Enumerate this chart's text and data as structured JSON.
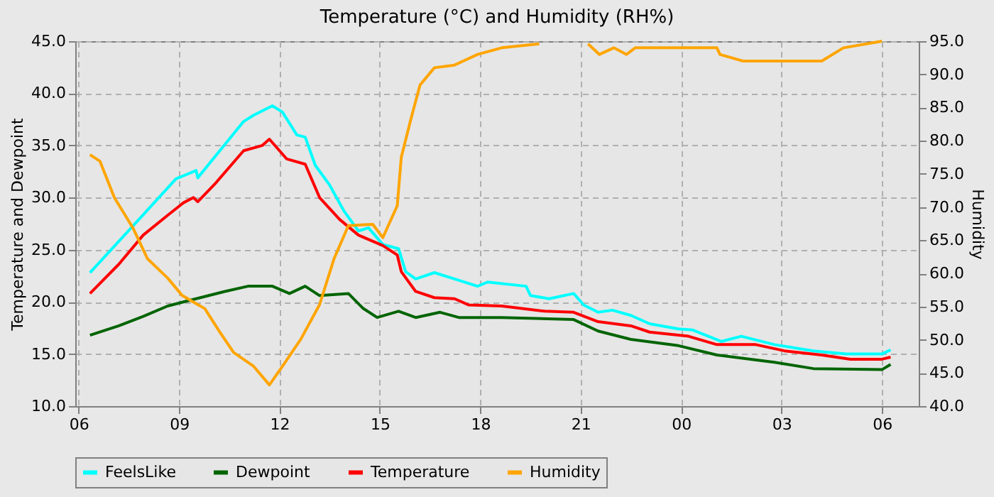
{
  "chart_data": {
    "type": "line",
    "title": "Temperature (°C) and Humidity (RH%)",
    "ylabel": "Temperature and Dewpoint",
    "y2label": "Humidity",
    "xlim": [
      5.9,
      31.1
    ],
    "xticks": [
      {
        "value": 6,
        "label": "06"
      },
      {
        "value": 9,
        "label": "09"
      },
      {
        "value": 12,
        "label": "12"
      },
      {
        "value": 15,
        "label": "15"
      },
      {
        "value": 18,
        "label": "18"
      },
      {
        "value": 21,
        "label": "21"
      },
      {
        "value": 24,
        "label": "00"
      },
      {
        "value": 27,
        "label": "03"
      },
      {
        "value": 30,
        "label": "06"
      }
    ],
    "ylim": [
      10,
      45
    ],
    "yticks": [
      {
        "value": 10,
        "label": "10.0"
      },
      {
        "value": 15,
        "label": "15.0"
      },
      {
        "value": 20,
        "label": "20.0"
      },
      {
        "value": 25,
        "label": "25.0"
      },
      {
        "value": 30,
        "label": "30.0"
      },
      {
        "value": 35,
        "label": "35.0"
      },
      {
        "value": 40,
        "label": "40.0"
      },
      {
        "value": 45,
        "label": "45.0"
      }
    ],
    "y2lim": [
      40,
      95
    ],
    "y2ticks": [
      {
        "value": 40,
        "label": "40.0"
      },
      {
        "value": 45,
        "label": "45.0"
      },
      {
        "value": 50,
        "label": "50.0"
      },
      {
        "value": 55,
        "label": "55.0"
      },
      {
        "value": 60,
        "label": "60.0"
      },
      {
        "value": 65,
        "label": "65.0"
      },
      {
        "value": 70,
        "label": "70.0"
      },
      {
        "value": 75,
        "label": "75.0"
      },
      {
        "value": 80,
        "label": "80.0"
      },
      {
        "value": 85,
        "label": "85.0"
      },
      {
        "value": 90,
        "label": "90.0"
      },
      {
        "value": 95,
        "label": "95.0"
      }
    ],
    "grid": true,
    "legend": "bottom",
    "series": [
      {
        "name": "FeelsLike",
        "color": "#00ffff",
        "x": [
          6.34,
          7.8,
          8.91,
          9.51,
          9.56,
          10.37,
          10.93,
          11.23,
          11.79,
          12.09,
          12.52,
          12.77,
          13.07,
          13.5,
          13.93,
          14.36,
          14.66,
          15.09,
          15.56,
          15.77,
          16.07,
          16.63,
          17.23,
          17.92,
          18.22,
          19.37,
          19.5,
          20.06,
          20.79,
          21.09,
          21.52,
          21.95,
          22.5,
          23.06,
          23.92,
          24.35,
          25.2,
          25.8,
          26.79,
          27.95,
          28.93,
          30.0,
          30.26
        ],
        "values": [
          22.8,
          27.9,
          31.8,
          32.6,
          31.9,
          35.1,
          37.3,
          37.9,
          38.8,
          38.2,
          36.0,
          35.8,
          33.1,
          31.2,
          28.7,
          26.8,
          27.1,
          25.5,
          25.1,
          22.9,
          22.2,
          22.8,
          22.2,
          21.5,
          21.9,
          21.5,
          20.6,
          20.3,
          20.8,
          19.7,
          19.0,
          19.2,
          18.7,
          17.9,
          17.4,
          17.3,
          16.2,
          16.7,
          15.9,
          15.3,
          15.0,
          15.0,
          15.4
        ]
      },
      {
        "name": "Dewpoint",
        "color": "#006400",
        "x": [
          6.34,
          7.2,
          7.93,
          8.66,
          9.51,
          10.37,
          11.06,
          11.79,
          12.3,
          12.77,
          13.2,
          14.06,
          14.49,
          14.92,
          15.56,
          16.07,
          16.8,
          17.36,
          18.64,
          20.79,
          21.52,
          22.5,
          23.92,
          25.07,
          26.79,
          27.95,
          30.0,
          30.26
        ],
        "values": [
          16.8,
          17.7,
          18.6,
          19.6,
          20.3,
          21.0,
          21.5,
          21.5,
          20.8,
          21.5,
          20.6,
          20.8,
          19.4,
          18.5,
          19.1,
          18.5,
          19.0,
          18.5,
          18.5,
          18.3,
          17.2,
          16.4,
          15.8,
          14.9,
          14.2,
          13.6,
          13.5,
          14.0
        ]
      },
      {
        "name": "Temperature",
        "color": "#ff0000",
        "x": [
          6.34,
          7.2,
          7.93,
          8.66,
          9.13,
          9.43,
          9.56,
          10.07,
          10.93,
          11.49,
          11.7,
          12.22,
          12.77,
          13.2,
          13.8,
          14.36,
          15.09,
          15.52,
          15.64,
          16.07,
          16.63,
          17.23,
          17.66,
          18.64,
          19.93,
          20.79,
          21.52,
          22.5,
          23.06,
          24.22,
          25.07,
          26.23,
          27.09,
          28.2,
          29.06,
          30.0,
          30.26
        ],
        "values": [
          20.8,
          23.6,
          26.4,
          28.3,
          29.5,
          30.0,
          29.6,
          31.3,
          34.5,
          35.0,
          35.6,
          33.7,
          33.2,
          30.0,
          27.9,
          26.4,
          25.4,
          24.5,
          22.9,
          21.0,
          20.4,
          20.3,
          19.7,
          19.6,
          19.1,
          19.0,
          18.1,
          17.7,
          17.1,
          16.7,
          15.9,
          15.9,
          15.3,
          14.9,
          14.5,
          14.5,
          14.7
        ]
      },
      {
        "name": "Humidity",
        "color": "#ffa500",
        "axis": "y2",
        "x": [
          6.34,
          6.64,
          7.07,
          7.63,
          8.06,
          8.66,
          9.09,
          9.56,
          9.77,
          10.2,
          10.63,
          11.23,
          11.7,
          12.09,
          12.64,
          13.2,
          13.63,
          14.06,
          14.79,
          15.09,
          15.52,
          15.64,
          15.94,
          16.2,
          16.63,
          17.23,
          17.49,
          17.92,
          18.64,
          19.76,
          20.5,
          21.22,
          21.56,
          21.99,
          22.37,
          22.63,
          25.07,
          25.16,
          25.85,
          28.2,
          28.85,
          30.0
        ],
        "values": [
          77.9,
          76.9,
          71.4,
          66.8,
          62.2,
          59.3,
          56.7,
          55.3,
          54.7,
          51.3,
          48.1,
          46.0,
          43.2,
          46.0,
          50.1,
          55.3,
          62.2,
          67.2,
          67.4,
          65.4,
          70.2,
          77.5,
          83.5,
          88.4,
          91.0,
          91.4,
          92.0,
          93.0,
          94.0,
          94.6,
          null,
          94.6,
          93.0,
          94.0,
          93.0,
          94.0,
          94.0,
          93.0,
          92.0,
          92.0,
          94.0,
          95.0
        ]
      }
    ]
  }
}
